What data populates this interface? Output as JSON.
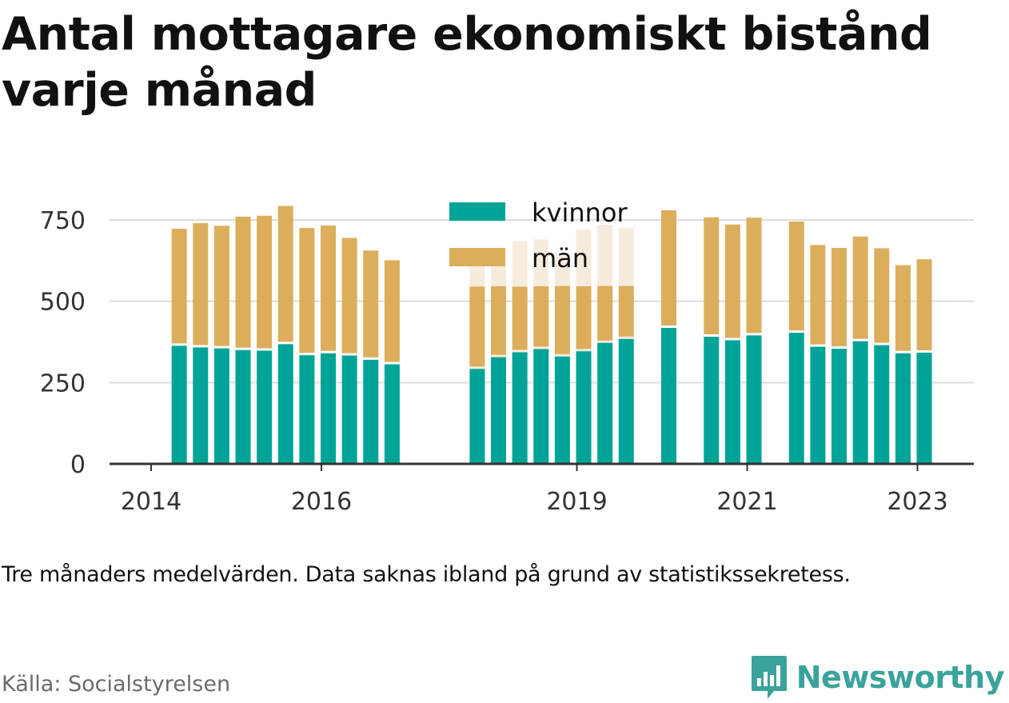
{
  "title": "Antal mottagare ekonomiskt bistånd varje månad",
  "note": "Tre månaders medelvärden. Data saknas ibland på grund av statistikssekretess.",
  "source": "Källa: Socialstyrelsen",
  "brand": {
    "name": "Newsworthy",
    "icon": "newsworthy-logo-icon",
    "color": "#3aa39b"
  },
  "colors": {
    "kvinnor": "#00a398",
    "man": "#dcae5c",
    "man_faded": "#f6ecdd",
    "grid": "#dddddd",
    "axis": "#333333"
  },
  "chart_data": {
    "type": "bar",
    "stacked": true,
    "title": "Antal mottagare ekonomiskt bistånd varje månad",
    "xlabel": "",
    "ylabel": "",
    "ylim": [
      0,
      800
    ],
    "yticks": [
      0,
      250,
      500,
      750
    ],
    "xlim": [
      2014.0,
      2024.0
    ],
    "xticks": [
      "2014",
      "2016",
      "2019",
      "2021",
      "2023"
    ],
    "grid": true,
    "legend": {
      "placement": "top-center",
      "entries": [
        "kvinnor",
        "män"
      ]
    },
    "x": [
      2014.33,
      2014.58,
      2014.83,
      2015.08,
      2015.33,
      2015.58,
      2015.83,
      2016.08,
      2016.33,
      2016.58,
      2016.83,
      2017.83,
      2018.08,
      2018.33,
      2018.58,
      2018.83,
      2019.08,
      2019.33,
      2019.58,
      2020.08,
      2020.58,
      2020.83,
      2021.08,
      2021.58,
      2021.83,
      2022.08,
      2022.33,
      2022.58,
      2022.83,
      2023.08
    ],
    "series": [
      {
        "name": "kvinnor",
        "values": [
          363,
          358,
          355,
          350,
          348,
          368,
          334,
          340,
          333,
          320,
          306,
          292,
          328,
          343,
          353,
          330,
          346,
          372,
          384,
          418,
          391,
          380,
          395,
          403,
          360,
          354,
          377,
          365,
          340,
          342
        ]
      },
      {
        "name": "män",
        "values": [
          360,
          382,
          377,
          410,
          415,
          425,
          391,
          393,
          362,
          336,
          320,
          253,
          218,
          202,
          193,
          217,
          200,
          175,
          163,
          362,
          367,
          356,
          362,
          342,
          313,
          310,
          322,
          298,
          271,
          287
        ]
      }
    ],
    "faded_overlay": {
      "x": [
        2017.83,
        2018.08,
        2018.33,
        2018.58,
        2018.83,
        2019.08,
        2019.33,
        2019.58
      ],
      "totals": [
        610,
        610,
        685,
        690,
        640,
        720,
        735,
        725
      ]
    }
  }
}
